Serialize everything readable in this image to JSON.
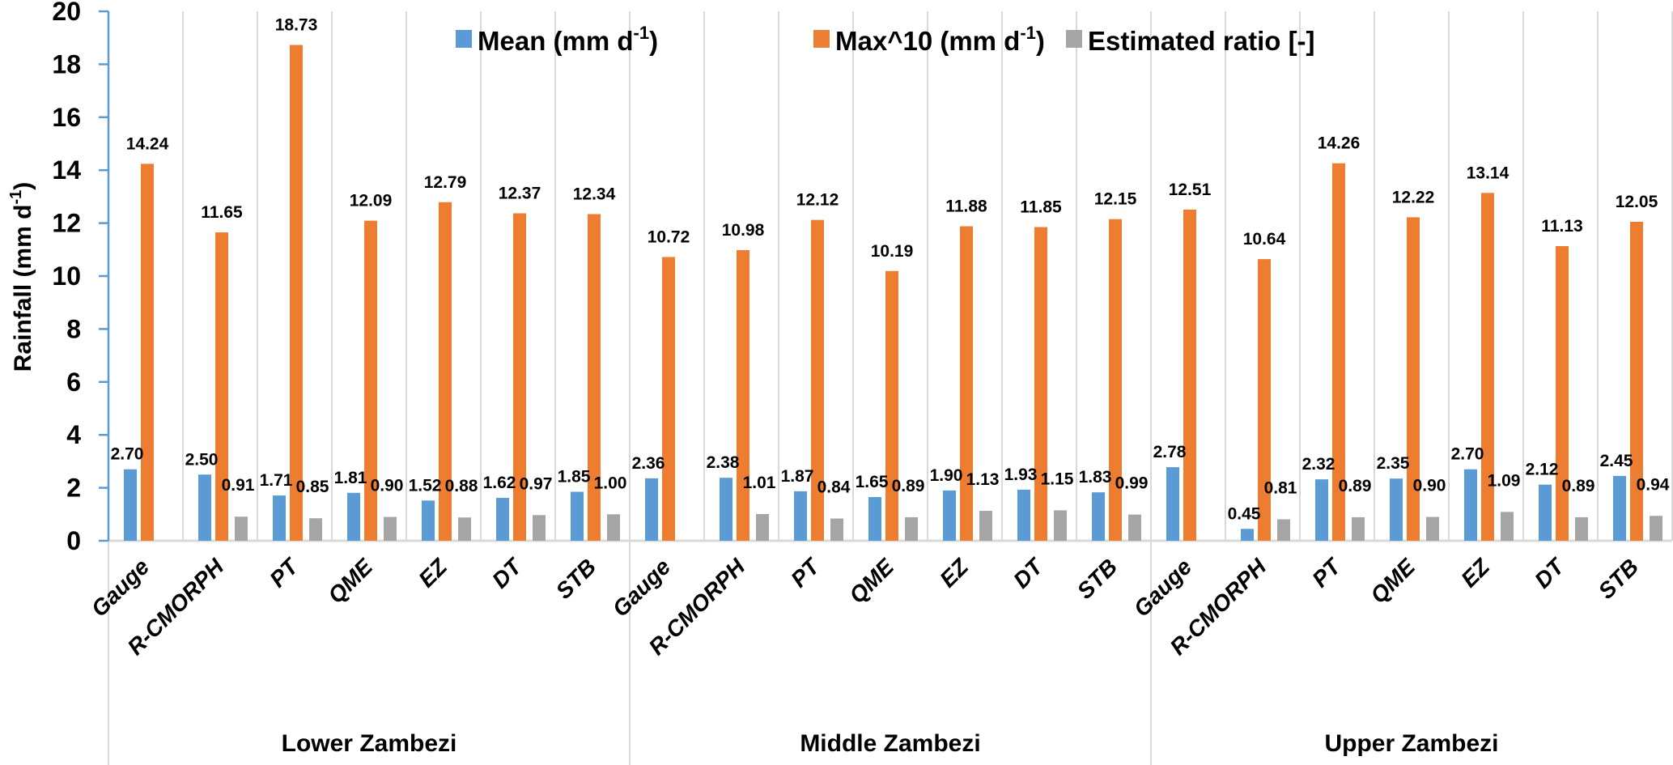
{
  "chart_data": {
    "type": "bar",
    "title": "",
    "xlabel": "",
    "ylabel": "Rainfall (mm d",
    "ylabel_superscript": "-1",
    "ylabel_suffix": ")",
    "ylim": [
      0,
      20
    ],
    "yticks": [
      0,
      2,
      4,
      6,
      8,
      10,
      12,
      14,
      16,
      18,
      20
    ],
    "grid": "vertical category separators",
    "legend_position": "top-center",
    "groups": [
      {
        "name": "Lower Zambezi",
        "categories": [
          "Gauge",
          "R-CMORPH",
          "PT",
          "QME",
          "EZ",
          "DT",
          "STB"
        ]
      },
      {
        "name": "Middle Zambezi",
        "categories": [
          "Gauge",
          "R-CMORPH",
          "PT",
          "QME",
          "EZ",
          "DT",
          "STB"
        ]
      },
      {
        "name": "Upper Zambezi",
        "categories": [
          "Gauge",
          "R-CMORPH",
          "PT",
          "QME",
          "EZ",
          "DT",
          "STB"
        ]
      }
    ],
    "series": [
      {
        "name": "Mean (mm d",
        "name_superscript": "-1",
        "name_suffix": ")",
        "color": "#5B9BD5",
        "values": [
          2.7,
          2.5,
          1.71,
          1.81,
          1.52,
          1.62,
          1.85,
          2.36,
          2.38,
          1.87,
          1.65,
          1.9,
          1.93,
          1.83,
          2.78,
          0.45,
          2.32,
          2.35,
          2.7,
          2.12,
          2.45
        ]
      },
      {
        "name": "Max^10 (mm d",
        "name_superscript": "-1",
        "name_suffix": ")",
        "color": "#ED7D31",
        "values": [
          14.24,
          11.65,
          18.73,
          12.09,
          12.79,
          12.37,
          12.34,
          10.72,
          10.98,
          12.12,
          10.19,
          11.88,
          11.85,
          12.15,
          12.51,
          10.64,
          14.26,
          12.22,
          13.14,
          11.13,
          12.05
        ]
      },
      {
        "name": "Estimated  ratio [-]",
        "name_superscript": "",
        "name_suffix": "",
        "color": "#A5A5A5",
        "values": [
          null,
          0.91,
          0.85,
          0.9,
          0.88,
          0.97,
          1.0,
          null,
          1.01,
          0.84,
          0.89,
          1.13,
          1.15,
          0.99,
          null,
          0.81,
          0.89,
          0.9,
          1.09,
          0.89,
          0.94
        ]
      }
    ],
    "axis_color": "#5B9BD5",
    "grid_color": "#D9D9D9"
  }
}
